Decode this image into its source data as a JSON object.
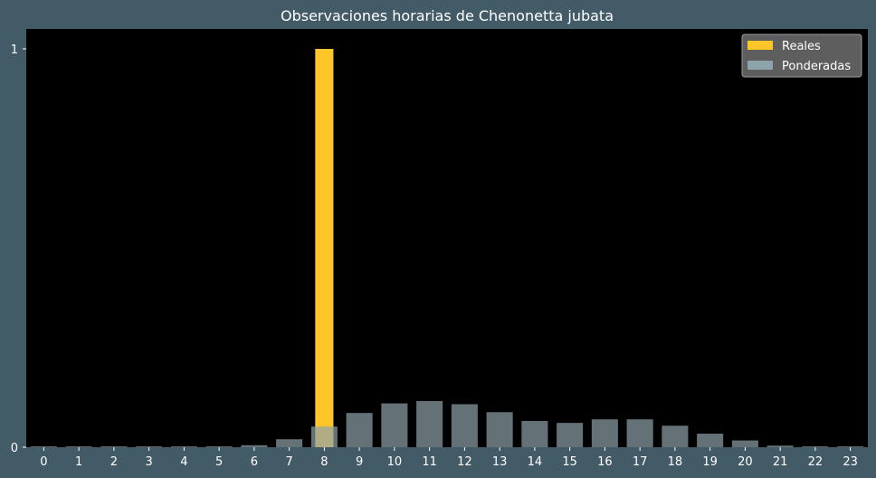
{
  "chart_data": {
    "type": "bar",
    "title": "Observaciones horarias de Chenonetta jubata",
    "xlabel": "",
    "ylabel": "",
    "categories": [
      "0",
      "1",
      "2",
      "3",
      "4",
      "5",
      "6",
      "7",
      "8",
      "9",
      "10",
      "11",
      "12",
      "13",
      "14",
      "15",
      "16",
      "17",
      "18",
      "19",
      "20",
      "21",
      "22",
      "23"
    ],
    "yticks": [
      "0",
      "1"
    ],
    "ylim": [
      0,
      1.05
    ],
    "grid": false,
    "legend_position": "top-right",
    "series": [
      {
        "name": "Reales",
        "color": "#ffc629",
        "values": [
          0,
          0,
          0,
          0,
          0,
          0,
          0,
          0,
          1,
          0,
          0,
          0,
          0,
          0,
          0,
          0,
          0,
          0,
          0,
          0,
          0,
          0,
          0,
          0
        ]
      },
      {
        "name": "Ponderadas",
        "color": "#8fa3ab",
        "values": [
          0.002,
          0.002,
          0.002,
          0.002,
          0.002,
          0.002,
          0.005,
          0.02,
          0.052,
          0.086,
          0.11,
          0.116,
          0.108,
          0.088,
          0.066,
          0.061,
          0.07,
          0.07,
          0.054,
          0.034,
          0.017,
          0.004,
          0.002,
          0.002
        ]
      }
    ]
  }
}
